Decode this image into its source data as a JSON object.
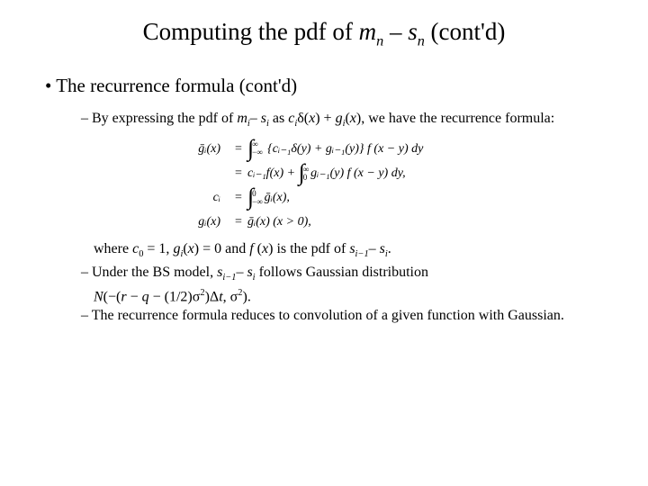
{
  "title": {
    "prefix": "Computing the pdf of ",
    "m": "m",
    "n1": "n",
    "minus": " – ",
    "s": "s",
    "n2": "n",
    "suffix": " (cont'd)"
  },
  "bullet1": "The recurrence formula (cont'd)",
  "sub1": {
    "prefix": "By expressing the pdf of ",
    "mi": "m",
    "i1": "i",
    "dash": "– ",
    "si": "s",
    "i2": "i",
    "mid": " as ",
    "ci": "c",
    "i3": "i",
    "delta": "δ(",
    "x1": "x",
    "plus": ") + ",
    "gi": "g",
    "i4": "i",
    "paren": "(",
    "x2": "x",
    "suffix": "), we have the recurrence formula:"
  },
  "math": {
    "row1_left": "ḡᵢ(x)",
    "row1_right_a": "{cᵢ₋₁δ(y) + gᵢ₋₁(y)}",
    "row1_right_b": " f (x − y) dy",
    "row2_right_a": "cᵢ₋₁f(x) + ",
    "row2_right_b": "gᵢ₋₁(y) f (x − y) dy,",
    "row3_left": "cᵢ",
    "row3_right": "ḡᵢ(x),",
    "row4_left": "gᵢ(x)",
    "row4_right": "ḡᵢ(x)   (x > 0),",
    "inf": "∞",
    "neginf": "−∞",
    "zero": "0"
  },
  "where": {
    "prefix": "where ",
    "c0": "c",
    "zero1": "0",
    "eq1": " = 1, ",
    "gi": "g",
    "i": "i",
    "gx": "(",
    "x": "x",
    "eq0": ") = 0 and ",
    "f": "f ",
    "paren": "(",
    "x2": "x",
    "mid": ") is the pdf of ",
    "sim1": "s",
    "im1": "i−1",
    "dash": "– ",
    "si": "s",
    "i2": "i",
    "end": "."
  },
  "sub2": {
    "prefix": "Under the BS model, ",
    "sim1": "s",
    "im1": "i−1",
    "dash": "– ",
    "si": "s",
    "i2": "i",
    "mid": " follows ",
    "gauss": "Gaussian distribution"
  },
  "sub2b": {
    "N": "N",
    "open": "(−(",
    "r": "r",
    "m1": " − ",
    "q": "q",
    "m2": " − (1/2)σ",
    "sq1": "2",
    "dt": ")Δ",
    "t": "t",
    "comma": ", σ",
    "sq2": "2",
    "close": ")."
  },
  "sub3": {
    "prefix": "The recurrence formula reduces to ",
    "conv": "convolution of a given function with Gaussian",
    "end": "."
  }
}
